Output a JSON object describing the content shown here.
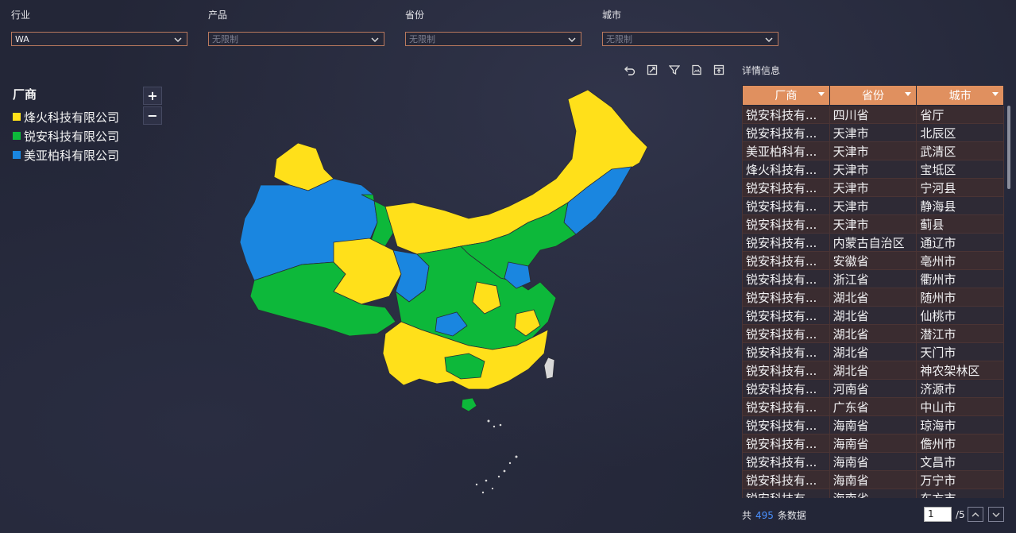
{
  "filters": [
    {
      "label": "行业",
      "value": "WA",
      "placeholder": ""
    },
    {
      "label": "产品",
      "value": "",
      "placeholder": "无限制"
    },
    {
      "label": "省份",
      "value": "",
      "placeholder": "无限制"
    },
    {
      "label": "城市",
      "value": "",
      "placeholder": "无限制"
    }
  ],
  "toolbar": {
    "icons": [
      "undo-icon",
      "fullscreen-icon",
      "filter-icon",
      "export-image-icon",
      "export-data-icon"
    ]
  },
  "legend": {
    "title": "厂商",
    "items": [
      {
        "label": "烽火科技有限公司",
        "color": "#ffe01a"
      },
      {
        "label": "锐安科技有限公司",
        "color": "#0db83a"
      },
      {
        "label": "美亚柏科有限公司",
        "color": "#1a86e0"
      }
    ]
  },
  "zoom": {
    "in": "+",
    "out": "−"
  },
  "detail": {
    "title": "详情信息",
    "columns": [
      "厂商",
      "省份",
      "城市"
    ],
    "rows": [
      [
        "锐安科技有...",
        "四川省",
        "省厅"
      ],
      [
        "锐安科技有...",
        "天津市",
        "北辰区"
      ],
      [
        "美亚柏科有...",
        "天津市",
        "武清区"
      ],
      [
        "烽火科技有...",
        "天津市",
        "宝坻区"
      ],
      [
        "锐安科技有...",
        "天津市",
        "宁河县"
      ],
      [
        "锐安科技有...",
        "天津市",
        "静海县"
      ],
      [
        "锐安科技有...",
        "天津市",
        "蓟县"
      ],
      [
        "锐安科技有...",
        "内蒙古自治区",
        "通辽市"
      ],
      [
        "锐安科技有...",
        "安徽省",
        "亳州市"
      ],
      [
        "锐安科技有...",
        "浙江省",
        "衢州市"
      ],
      [
        "锐安科技有...",
        "湖北省",
        "随州市"
      ],
      [
        "锐安科技有...",
        "湖北省",
        "仙桃市"
      ],
      [
        "锐安科技有...",
        "湖北省",
        "潜江市"
      ],
      [
        "锐安科技有...",
        "湖北省",
        "天门市"
      ],
      [
        "锐安科技有...",
        "湖北省",
        "神农架林区"
      ],
      [
        "锐安科技有...",
        "河南省",
        "济源市"
      ],
      [
        "锐安科技有...",
        "广东省",
        "中山市"
      ],
      [
        "锐安科技有...",
        "海南省",
        "琼海市"
      ],
      [
        "锐安科技有...",
        "海南省",
        "儋州市"
      ],
      [
        "锐安科技有...",
        "海南省",
        "文昌市"
      ],
      [
        "锐安科技有...",
        "海南省",
        "万宁市"
      ],
      [
        "锐安科技有...",
        "海南省",
        "东方市"
      ]
    ],
    "footer": {
      "prefix": "共",
      "count": "495",
      "suffix": "条数据"
    },
    "pager": {
      "current": "1",
      "total": "/5"
    }
  }
}
